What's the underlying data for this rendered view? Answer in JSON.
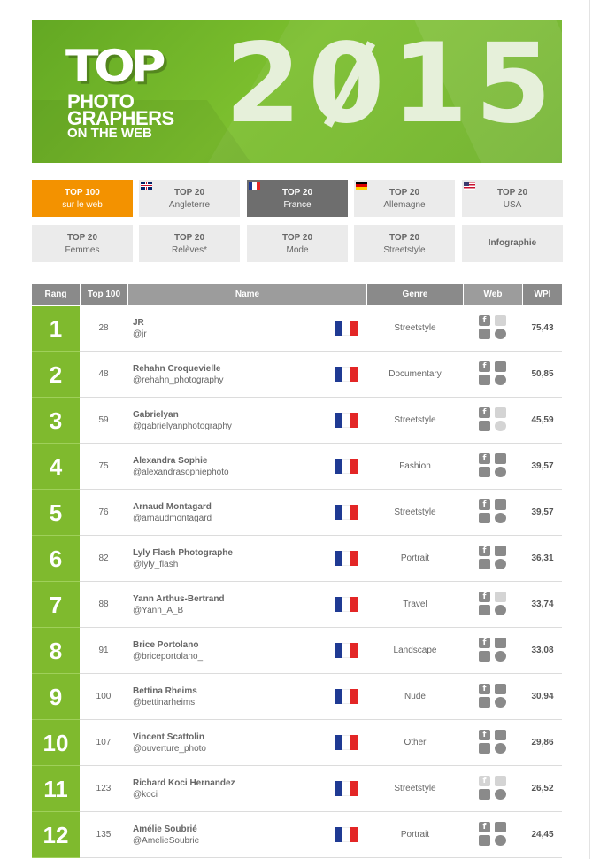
{
  "banner": {
    "logo_top": "TOP",
    "logo_line1": "PHOTO",
    "logo_line2": "GRAPHERS",
    "logo_line3": "ON THE WEB",
    "year_a": "2",
    "year_zero": "0",
    "year_b": "15"
  },
  "tabs_row1": [
    {
      "line1": "TOP 100",
      "line2": "sur le web",
      "state": "active-orange"
    },
    {
      "line1": "TOP 20",
      "line2": "Angleterre",
      "flag": "uk-flag"
    },
    {
      "line1": "TOP 20",
      "line2": "France",
      "state": "active-gray",
      "flag": "fr-flag"
    },
    {
      "line1": "TOP 20",
      "line2": "Allemagne",
      "flag": "de-flag"
    },
    {
      "line1": "TOP 20",
      "line2": "USA",
      "flag": "us-flag"
    }
  ],
  "tabs_row2": [
    {
      "line1": "TOP 20",
      "line2": "Femmes"
    },
    {
      "line1": "TOP 20",
      "line2": "Relèves*"
    },
    {
      "line1": "TOP 20",
      "line2": "Mode"
    },
    {
      "line1": "TOP 20",
      "line2": "Streetstyle"
    },
    {
      "line1": "Infographie",
      "line2": ""
    }
  ],
  "table": {
    "headers": {
      "rank": "Rang",
      "top100": "Top 100",
      "name": "Name",
      "genre": "Genre",
      "web": "Web",
      "wpi": "WPI"
    },
    "rows": [
      {
        "rank": "1",
        "top100": "28",
        "name": "JR",
        "handle": "@jr",
        "genre": "Streetstyle",
        "wpi": "75,43",
        "web": [
          true,
          false,
          true,
          true
        ]
      },
      {
        "rank": "2",
        "top100": "48",
        "name": "Rehahn Croquevielle",
        "handle": "@rehahn_photography",
        "genre": "Documentary",
        "wpi": "50,85",
        "web": [
          true,
          true,
          true,
          true
        ]
      },
      {
        "rank": "3",
        "top100": "59",
        "name": "Gabrielyan",
        "handle": "@gabrielyanphotography",
        "genre": "Streetstyle",
        "wpi": "45,59",
        "web": [
          true,
          false,
          true,
          false
        ]
      },
      {
        "rank": "4",
        "top100": "75",
        "name": "Alexandra Sophie",
        "handle": "@alexandrasophiephoto",
        "genre": "Fashion",
        "wpi": "39,57",
        "web": [
          true,
          true,
          true,
          true
        ]
      },
      {
        "rank": "5",
        "top100": "76",
        "name": "Arnaud Montagard",
        "handle": "@arnaudmontagard",
        "genre": "Streetstyle",
        "wpi": "39,57",
        "web": [
          true,
          true,
          true,
          true
        ]
      },
      {
        "rank": "6",
        "top100": "82",
        "name": "Lyly Flash Photographe",
        "handle": "@lyly_flash",
        "genre": "Portrait",
        "wpi": "36,31",
        "web": [
          true,
          true,
          true,
          true
        ]
      },
      {
        "rank": "7",
        "top100": "88",
        "name": "Yann Arthus-Bertrand",
        "handle": "@Yann_A_B",
        "genre": "Travel",
        "wpi": "33,74",
        "web": [
          true,
          false,
          true,
          true
        ]
      },
      {
        "rank": "8",
        "top100": "91",
        "name": "Brice Portolano",
        "handle": "@briceportolano_",
        "genre": "Landscape",
        "wpi": "33,08",
        "web": [
          true,
          true,
          true,
          true
        ]
      },
      {
        "rank": "9",
        "top100": "100",
        "name": "Bettina Rheims",
        "handle": "@bettinarheims",
        "genre": "Nude",
        "wpi": "30,94",
        "web": [
          true,
          true,
          true,
          true
        ]
      },
      {
        "rank": "10",
        "top100": "107",
        "name": "Vincent Scattolin",
        "handle": "@ouverture_photo",
        "genre": "Other",
        "wpi": "29,86",
        "web": [
          true,
          true,
          true,
          true
        ]
      },
      {
        "rank": "11",
        "top100": "123",
        "name": "Richard Koci Hernandez",
        "handle": "@koci",
        "genre": "Streetstyle",
        "wpi": "26,52",
        "web": [
          false,
          false,
          true,
          true
        ]
      },
      {
        "rank": "12",
        "top100": "135",
        "name": "Amélie Soubrié",
        "handle": "@AmelieSoubrie",
        "genre": "Portrait",
        "wpi": "24,45",
        "web": [
          true,
          true,
          true,
          true
        ]
      }
    ]
  },
  "colors": {
    "brand_green": "#7fba2e",
    "active_orange": "#f39200",
    "active_gray": "#6e6e6e",
    "header_gray": "#9c9c9c",
    "france_blue": "#1f3a93",
    "france_red": "#e32626"
  },
  "icons": {
    "web": [
      "facebook-icon",
      "camera-icon",
      "twitter-icon",
      "globe-icon"
    ],
    "row_flag": "france-flag-icon"
  }
}
